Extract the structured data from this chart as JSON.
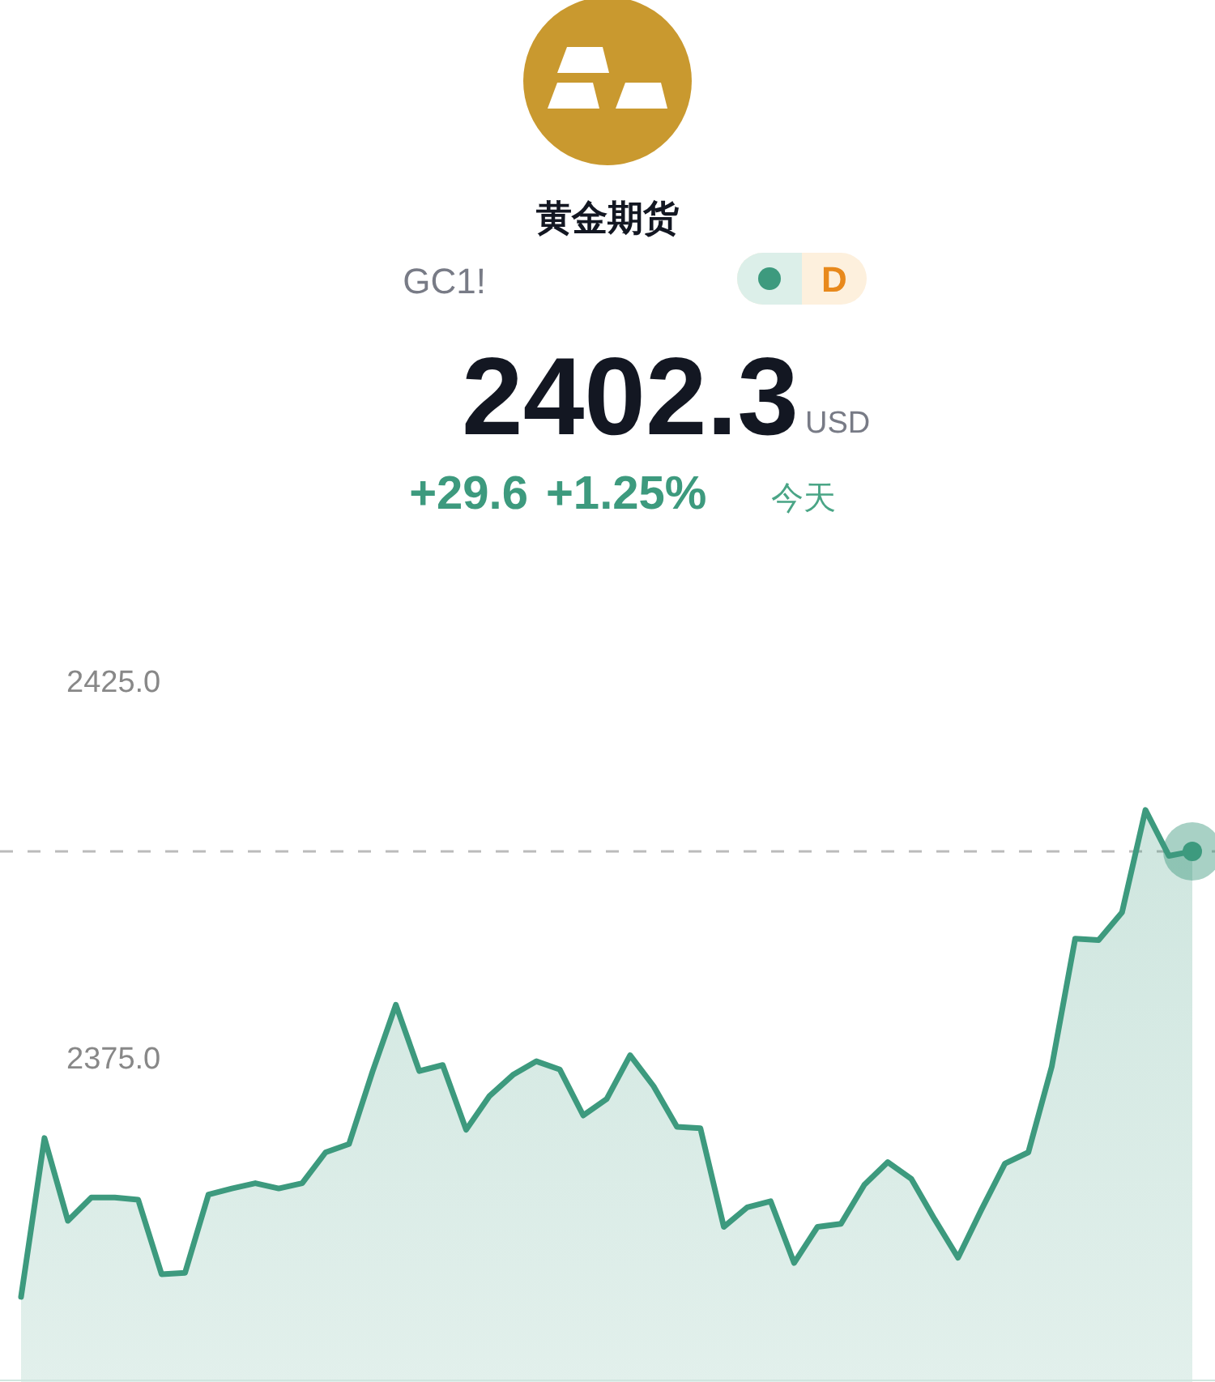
{
  "chart_data": {
    "type": "area",
    "title": "黄金期货",
    "annotations": [
      "GC1!",
      "D",
      "2402.3",
      "USD",
      "+29.6",
      "+1.25%",
      "今天"
    ],
    "categories": [
      null,
      null,
      null,
      null,
      null,
      null,
      null,
      null,
      null,
      null,
      null,
      null,
      null,
      null,
      null,
      null,
      null,
      null,
      null,
      null,
      null,
      null,
      null,
      null,
      null,
      null,
      null,
      null,
      null,
      null,
      null,
      null,
      null,
      null,
      null,
      null,
      null,
      null,
      null,
      null,
      null,
      null,
      null,
      null,
      null,
      null,
      null,
      null,
      null,
      null,
      null
    ],
    "series": [
      {
        "color": "#3d9a7e",
        "values": [
          2343.1,
          2364.2,
          2353.2,
          2356.3,
          2356.3,
          2356.0,
          2346.1,
          2346.3,
          2356.7,
          2357.5,
          2358.2,
          2357.5,
          2358.2,
          2362.3,
          2363.4,
          2373.0,
          2381.9,
          2373.1,
          2373.9,
          2365.3,
          2369.8,
          2372.6,
          2374.4,
          2373.3,
          2367.2,
          2369.4,
          2375.2,
          2371.1,
          2365.7,
          2365.5,
          2352.4,
          2355.0,
          2355.8,
          2347.6,
          2352.4,
          2352.8,
          2358.0,
          2361.0,
          2358.8,
          2353.4,
          2348.3,
          2354.7,
          2360.8,
          2362.3,
          2373.7,
          2390.7,
          2390.5,
          2394.2,
          2407.8,
          2401.7,
          2402.3
        ]
      }
    ],
    "ylim": [
      2332,
      2425
    ],
    "yticks": [
      {
        "value": 2425,
        "label": "2425.0"
      },
      {
        "value": 2375,
        "label": "2375.0"
      }
    ],
    "tick_labels": "y",
    "grid": false,
    "ref_lines": [
      {
        "axis": "y",
        "value": 2402.3,
        "color": "#bbbbbb",
        "line_style": "dashed"
      }
    ]
  }
}
